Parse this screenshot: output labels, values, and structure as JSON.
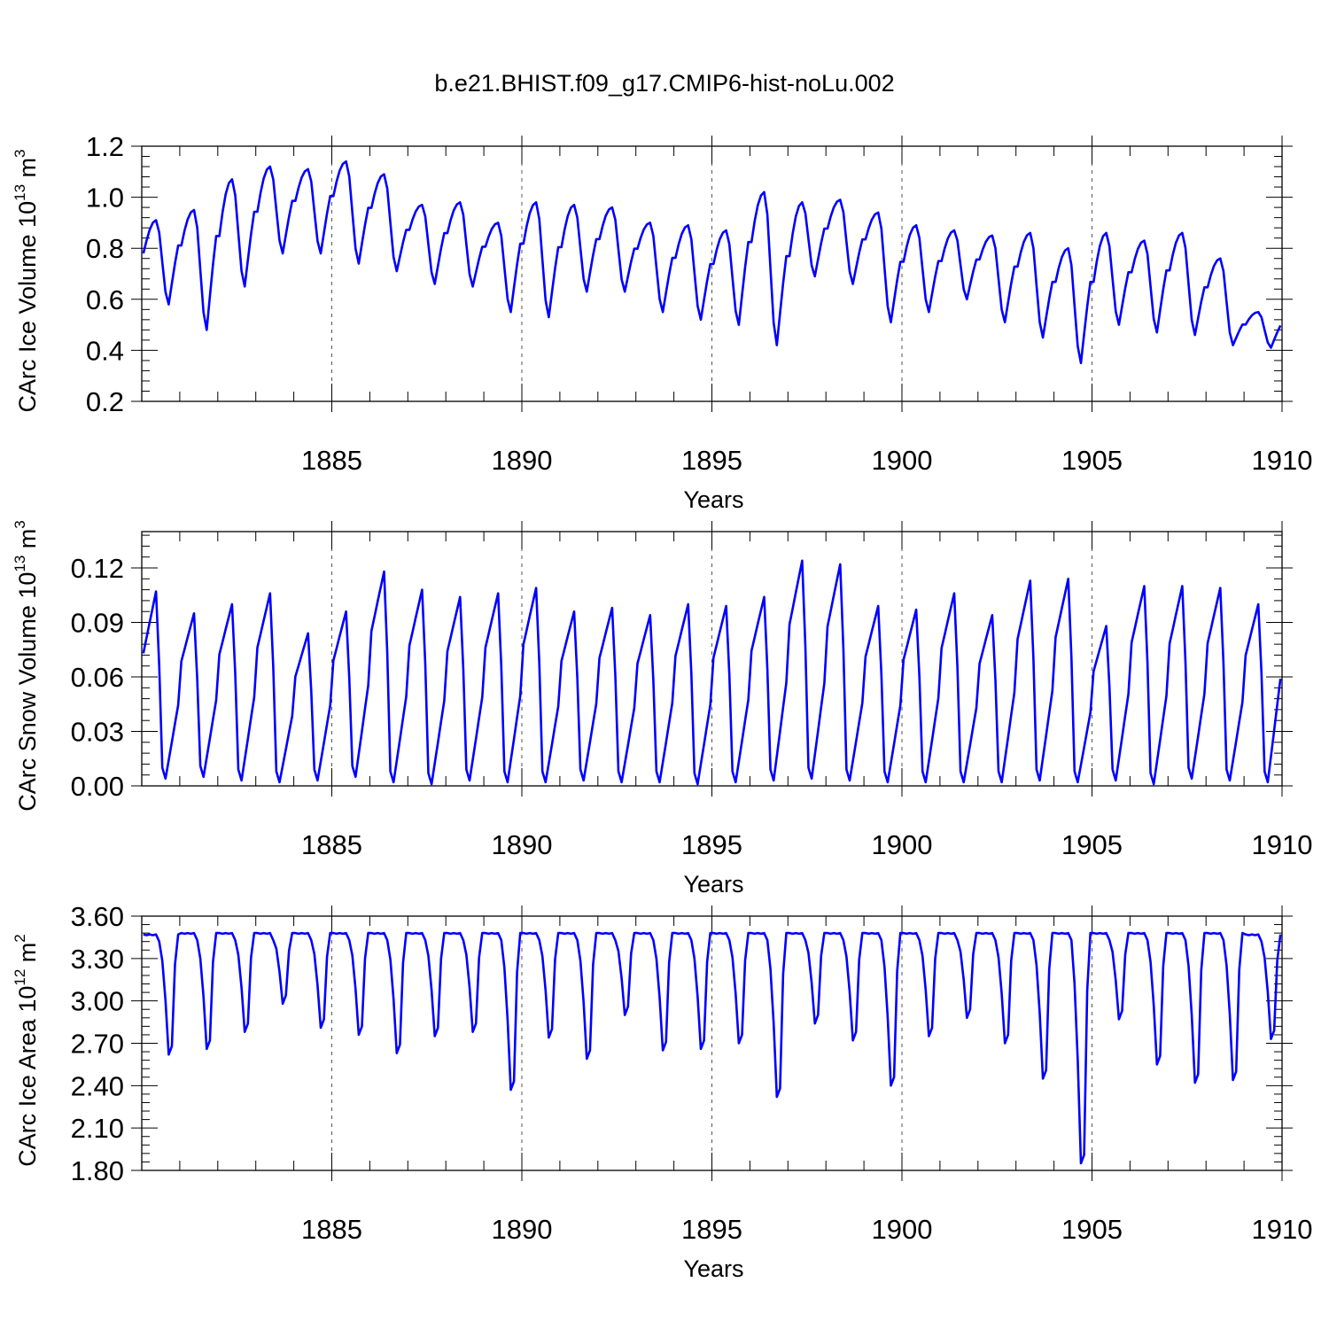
{
  "figure": {
    "title": "b.e21.BHIST.f09_g17.CMIP6-hist-noLu.002",
    "line_color": "#0000ff",
    "grid_color": "#555555"
  },
  "chart_data": [
    {
      "type": "line",
      "ylabel": "CArc Ice Volume 10",
      "ylabel_exp": "13",
      "ylabel_unit": " m",
      "ylabel_unit_exp": "3",
      "xlabel": "Years",
      "xlim": [
        1880.0,
        1910.0
      ],
      "ylim": [
        0.2,
        1.2
      ],
      "yticks": [
        0.2,
        0.4,
        0.6,
        0.8,
        1.0,
        1.2
      ],
      "ytick_labels": [
        "0.2",
        "0.4",
        "0.6",
        "0.8",
        "1.0",
        "1.2"
      ],
      "xticks": [
        1885,
        1890,
        1895,
        1900,
        1905,
        1910
      ],
      "xtick_labels": [
        "1885",
        "1890",
        "1895",
        "1900",
        "1905",
        "1910"
      ],
      "grid_x": true,
      "annual": {
        "max": [
          0.91,
          0.95,
          1.07,
          1.12,
          1.11,
          1.14,
          1.09,
          0.97,
          0.98,
          0.9,
          0.98,
          0.97,
          0.96,
          0.9,
          0.89,
          0.87,
          1.02,
          0.98,
          0.99,
          0.94,
          0.89,
          0.87,
          0.85,
          0.86,
          0.8,
          0.86,
          0.83,
          0.86,
          0.76,
          0.55
        ],
        "min": [
          0.58,
          0.48,
          0.65,
          0.78,
          0.78,
          0.74,
          0.71,
          0.66,
          0.65,
          0.55,
          0.53,
          0.63,
          0.63,
          0.55,
          0.52,
          0.5,
          0.42,
          0.69,
          0.66,
          0.51,
          0.55,
          0.6,
          0.51,
          0.45,
          0.35,
          0.5,
          0.47,
          0.46,
          0.42,
          0.41
        ],
        "start": 0.78
      }
    },
    {
      "type": "line",
      "ylabel": "CArc Snow Volume 10",
      "ylabel_exp": "13",
      "ylabel_unit": " m",
      "ylabel_unit_exp": "3",
      "xlabel": "Years",
      "xlim": [
        1880.0,
        1910.0
      ],
      "ylim": [
        0.0,
        0.14
      ],
      "yticks": [
        0.0,
        0.03,
        0.06,
        0.09,
        0.12
      ],
      "ytick_labels": [
        "0.00",
        "0.03",
        "0.06",
        "0.09",
        "0.12"
      ],
      "xticks": [
        1885,
        1890,
        1895,
        1900,
        1905,
        1910
      ],
      "xtick_labels": [
        "1885",
        "1890",
        "1895",
        "1900",
        "1905",
        "1910"
      ],
      "grid_x": true,
      "annual": {
        "max": [
          0.107,
          0.095,
          0.1,
          0.106,
          0.084,
          0.096,
          0.118,
          0.108,
          0.104,
          0.106,
          0.109,
          0.096,
          0.098,
          0.094,
          0.1,
          0.099,
          0.104,
          0.124,
          0.122,
          0.099,
          0.097,
          0.106,
          0.094,
          0.113,
          0.114,
          0.088,
          0.11,
          0.11,
          0.109,
          0.1
        ],
        "min": [
          0.004,
          0.005,
          0.003,
          0.002,
          0.003,
          0.005,
          0.002,
          0.001,
          0.003,
          0.002,
          0.002,
          0.003,
          0.002,
          0.002,
          0.001,
          0.002,
          0.003,
          0.004,
          0.003,
          0.002,
          0.002,
          0.002,
          0.002,
          0.003,
          0.002,
          0.003,
          0.001,
          0.004,
          0.003,
          0.002
        ],
        "start": 0.073,
        "end": 0.059
      }
    },
    {
      "type": "line",
      "ylabel": "CArc Ice Area 10",
      "ylabel_exp": "12",
      "ylabel_unit": " m",
      "ylabel_unit_exp": "2",
      "xlabel": "Years",
      "xlim": [
        1880.0,
        1910.0
      ],
      "ylim": [
        1.8,
        3.6
      ],
      "yticks": [
        1.8,
        2.1,
        2.4,
        2.7,
        3.0,
        3.3,
        3.6
      ],
      "ytick_labels": [
        "1.80",
        "2.10",
        "2.40",
        "2.70",
        "3.00",
        "3.30",
        "3.60"
      ],
      "xticks": [
        1885,
        1890,
        1895,
        1900,
        1905,
        1910
      ],
      "xtick_labels": [
        "1885",
        "1890",
        "1895",
        "1900",
        "1905",
        "1910"
      ],
      "grid_x": true,
      "annual": {
        "max": [
          3.47,
          3.48,
          3.48,
          3.48,
          3.48,
          3.48,
          3.48,
          3.48,
          3.48,
          3.48,
          3.48,
          3.48,
          3.48,
          3.48,
          3.48,
          3.48,
          3.48,
          3.48,
          3.48,
          3.48,
          3.48,
          3.48,
          3.48,
          3.48,
          3.48,
          3.48,
          3.48,
          3.48,
          3.48,
          3.47
        ],
        "min": [
          2.62,
          2.66,
          2.78,
          2.98,
          2.81,
          2.76,
          2.63,
          2.75,
          2.78,
          2.37,
          2.74,
          2.59,
          2.9,
          2.65,
          2.66,
          2.7,
          2.32,
          2.84,
          2.72,
          2.4,
          2.75,
          2.88,
          2.7,
          2.45,
          1.85,
          2.87,
          2.55,
          2.42,
          2.44,
          2.73
        ]
      }
    }
  ]
}
